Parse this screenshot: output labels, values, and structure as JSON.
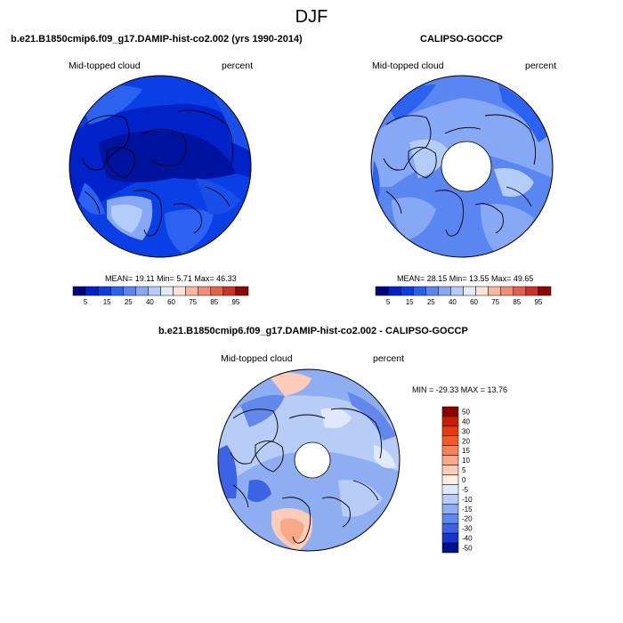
{
  "season": "DJF",
  "panels": [
    {
      "title": "b.e21.B1850cmip6.f09_g17.DAMIP-hist-co2.002 (yrs 1990-2014)",
      "variable": "Mid-topped cloud",
      "units": "percent",
      "stats": "MEAN=  19.11  Min=   5.71  Max=  46.33",
      "colorbar_labels": [
        "5",
        "15",
        "25",
        "40",
        "60",
        "75",
        "85",
        "95"
      ]
    },
    {
      "title": "CALIPSO-GOCCP",
      "variable": "Mid-topped cloud",
      "units": "percent",
      "stats": "MEAN=  28.15  Min=  13.55  Max=  49.65",
      "colorbar_labels": [
        "5",
        "15",
        "25",
        "40",
        "60",
        "75",
        "85",
        "95"
      ]
    },
    {
      "title": "b.e21.B1850cmip6.f09_g17.DAMIP-hist-co2.002 - CALIPSO-GOCCP",
      "variable": "Mid-topped cloud",
      "units": "percent",
      "stats": "MIN = -29.33 MAX =  13.76",
      "colorbar_labels": [
        "50",
        "40",
        "30",
        "20",
        "15",
        "10",
        "5",
        "0",
        "-5",
        "-10",
        "-15",
        "-20",
        "-30",
        "-40",
        "-50"
      ]
    }
  ],
  "colors": {
    "abs_scale": [
      "#00007f",
      "#0022c8",
      "#0a3fe6",
      "#2c62f0",
      "#5a86f2",
      "#87a9f5",
      "#b4cdf8",
      "#e2ecfb",
      "#fde3d6",
      "#f8b79f",
      "#f08f74",
      "#e4614b",
      "#cc3226",
      "#8c0a00"
    ],
    "diff_scale": [
      "#8c0000",
      "#c81e00",
      "#e83a0a",
      "#f25a2a",
      "#f7825a",
      "#f9a889",
      "#fbcdb8",
      "#fcece3",
      "#dfe9fb",
      "#b7cdf6",
      "#8faef1",
      "#6388ec",
      "#3c62e6",
      "#1736cf",
      "#00118f"
    ]
  }
}
